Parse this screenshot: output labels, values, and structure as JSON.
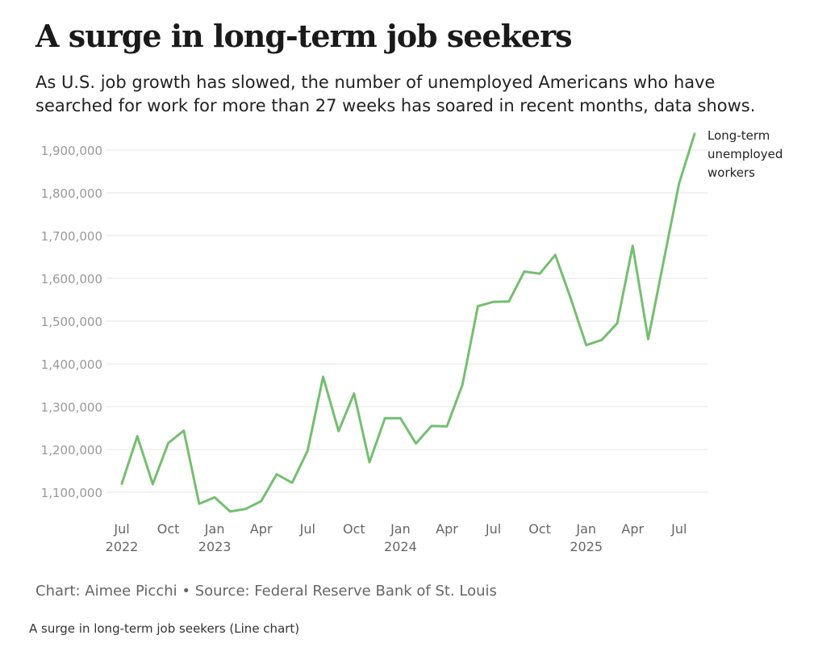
{
  "chart_data": {
    "type": "line",
    "title": "A surge in long-term job seekers",
    "subtitle": "As U.S. job growth has slowed, the number of unemployed Americans who have searched for work for more than 27 weeks has soared in recent months, data shows.",
    "xlabel": "",
    "ylabel": "",
    "ylim": [
      1050000,
      1950000
    ],
    "yticks": [
      1100000,
      1200000,
      1300000,
      1400000,
      1500000,
      1600000,
      1700000,
      1800000,
      1900000
    ],
    "ytick_labels": [
      "1,100,000",
      "1,200,000",
      "1,300,000",
      "1,400,000",
      "1,500,000",
      "1,600,000",
      "1,700,000",
      "1,800,000",
      "1,900,000"
    ],
    "xticks": [
      {
        "index": 0,
        "month": "Jul",
        "year": "2022"
      },
      {
        "index": 3,
        "month": "Oct",
        "year": ""
      },
      {
        "index": 6,
        "month": "Jan",
        "year": "2023"
      },
      {
        "index": 9,
        "month": "Apr",
        "year": ""
      },
      {
        "index": 12,
        "month": "Jul",
        "year": ""
      },
      {
        "index": 15,
        "month": "Oct",
        "year": ""
      },
      {
        "index": 18,
        "month": "Jan",
        "year": "2024"
      },
      {
        "index": 21,
        "month": "Apr",
        "year": ""
      },
      {
        "index": 24,
        "month": "Jul",
        "year": ""
      },
      {
        "index": 27,
        "month": "Oct",
        "year": ""
      },
      {
        "index": 30,
        "month": "Jan",
        "year": "2025"
      },
      {
        "index": 33,
        "month": "Apr",
        "year": ""
      },
      {
        "index": 36,
        "month": "Jul",
        "year": ""
      }
    ],
    "series": [
      {
        "name": "Long-term unemployed workers",
        "color": "#74bf6f",
        "start": "2022-07",
        "values": [
          1120000,
          1231000,
          1119000,
          1215000,
          1244000,
          1073000,
          1088000,
          1055000,
          1061000,
          1079000,
          1142000,
          1122000,
          1197000,
          1370000,
          1243000,
          1331000,
          1170000,
          1273000,
          1273000,
          1214000,
          1255000,
          1254000,
          1351000,
          1535000,
          1545000,
          1546000,
          1616000,
          1611000,
          1655000,
          1553000,
          1444000,
          1456000,
          1495000,
          1676000,
          1458000,
          1641000,
          1822000,
          1938000
        ]
      }
    ],
    "legend_label": "Long-term unemployed workers",
    "legend_placement": "right",
    "grid": true
  },
  "label_lines": [
    "Long-term",
    "unemployed",
    "workers"
  ],
  "credit": "Chart: Aimee Picchi • Source: Federal Reserve Bank of St. Louis",
  "caption": "A surge in long-term job seekers (Line chart)"
}
